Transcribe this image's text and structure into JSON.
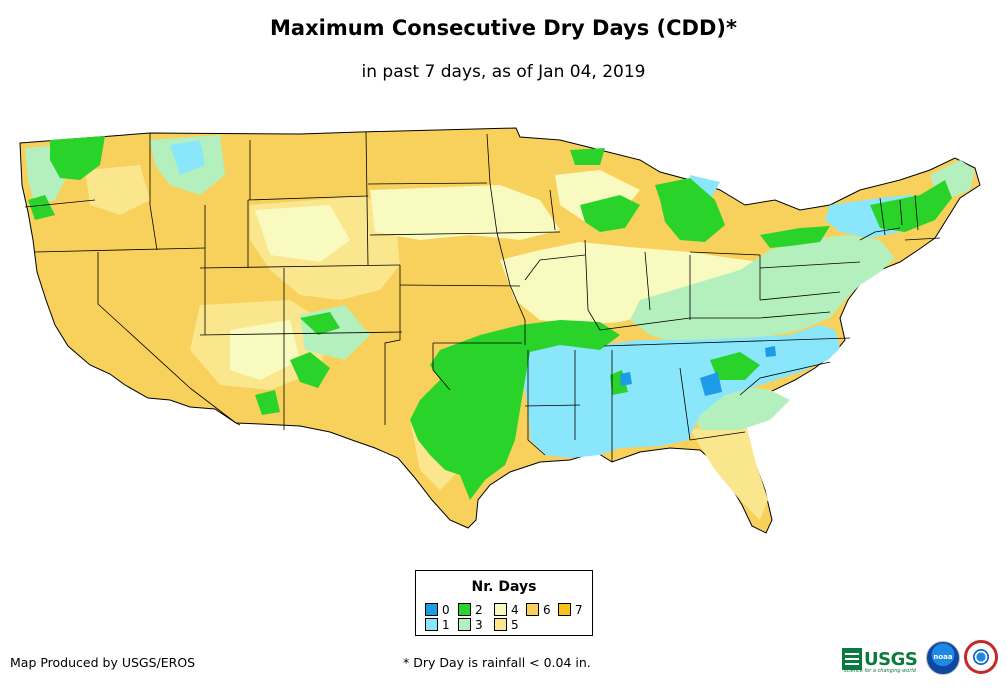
{
  "title": "Maximum Consecutive Dry Days (CDD)*",
  "subtitle": "in past 7 days, as of Jan 04, 2019",
  "legend": {
    "title": "Nr. Days",
    "items": [
      {
        "label": "0",
        "color": "#1e9be6"
      },
      {
        "label": "1",
        "color": "#8ae6fa"
      },
      {
        "label": "2",
        "color": "#2ad32a"
      },
      {
        "label": "3",
        "color": "#b4f0be"
      },
      {
        "label": "4",
        "color": "#f8fac0"
      },
      {
        "label": "5",
        "color": "#fae68c"
      },
      {
        "label": "6",
        "color": "#f8d05c"
      },
      {
        "label": "7",
        "color": "#f6c21c"
      }
    ]
  },
  "credit": "Map Produced by USGS/EROS",
  "footnote": "* Dry Day is rainfall < 0.04 in.",
  "logos": {
    "usgs": "USGS",
    "usgs_tagline": "science for a changing world",
    "noaa": "noaa",
    "nws": "NWS"
  }
}
